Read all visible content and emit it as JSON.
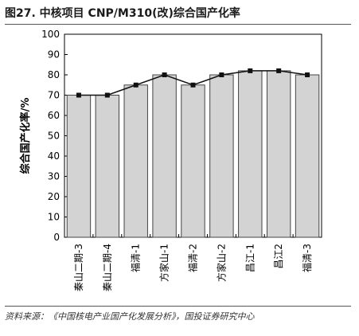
{
  "figure": {
    "title": "图27. 中核项目  CNP/M310(改)综合国产化率",
    "source": "资料来源：《中国核电产业国产化发展分析》，国投证券研究中心"
  },
  "chart_data": {
    "type": "bar",
    "categories": [
      "秦山二期-3",
      "秦山二期-4",
      "福清-1",
      "方家山-1",
      "福清-2",
      "方家山-2",
      "昌江-1",
      "昌江2",
      "福清-3"
    ],
    "series": [
      {
        "type": "bar",
        "values": [
          70,
          70,
          75,
          80,
          75,
          80,
          82,
          82,
          80
        ]
      },
      {
        "type": "line",
        "values": [
          70,
          70,
          75,
          80,
          75,
          80,
          82,
          82,
          80
        ]
      }
    ],
    "ylabel": "综合国产化率/%",
    "ylim": [
      0,
      100
    ],
    "yticks": [
      0,
      10,
      20,
      30,
      40,
      50,
      60,
      70,
      80,
      90,
      100
    ],
    "grid": false,
    "legend": "none",
    "colors": {
      "bar_fill": "#d3d3d3",
      "bar_stroke": "#444444",
      "line": "#111111",
      "marker": "#111111"
    }
  }
}
